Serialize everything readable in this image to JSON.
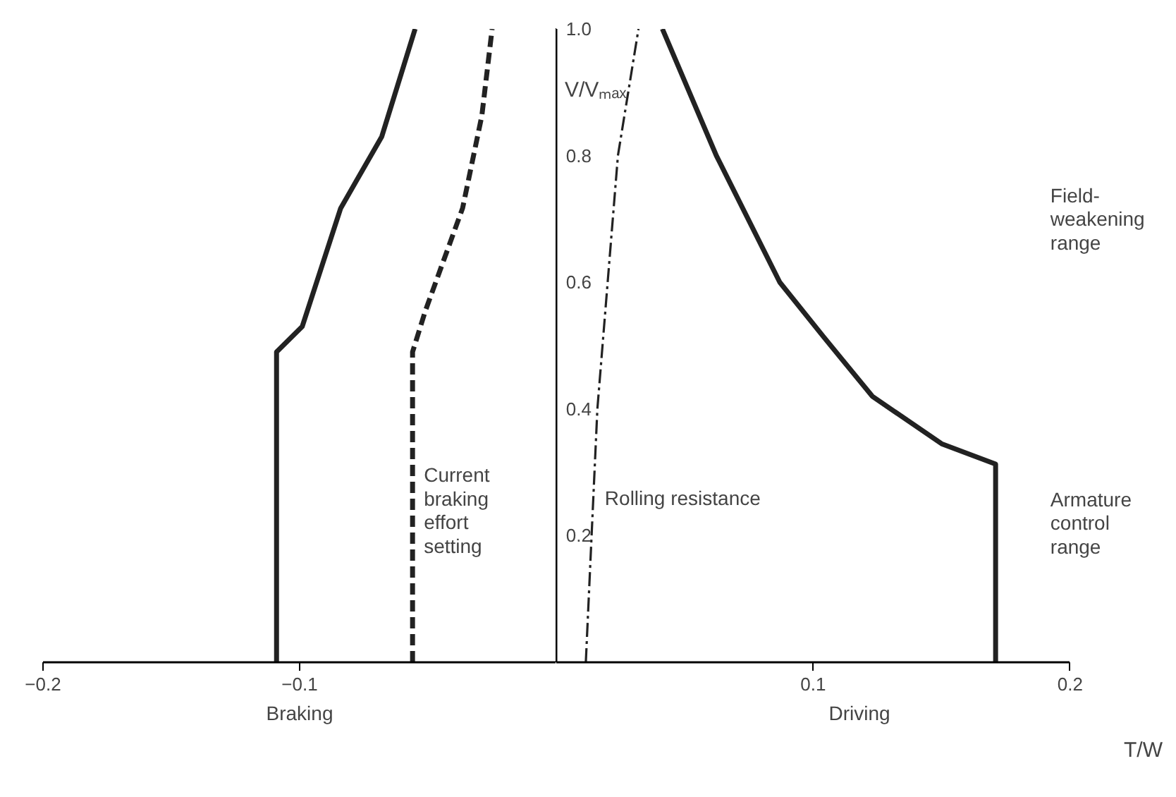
{
  "chart_data": {
    "type": "line",
    "xlabel": "T/W",
    "ylabel": "V/Vₘₐₓ",
    "xlim": [
      -0.2,
      0.2
    ],
    "xticks": [
      {
        "value": -0.2,
        "label": "−0.2"
      },
      {
        "value": -0.1,
        "label": "−0.1"
      },
      0.1,
      0.2
    ],
    "ylim": [
      0,
      1.0
    ],
    "yticks": [
      0.2,
      0.4,
      0.6,
      0.8,
      {
        "value": 1.0,
        "label": "1.0"
      }
    ],
    "grid": false,
    "series": [
      {
        "color": "#222222",
        "line_style": "solid",
        "x": [
          -0.109,
          -0.109,
          -0.099,
          -0.084,
          -0.068,
          -0.055
        ],
        "values": [
          0,
          0.49,
          0.53,
          0.717,
          0.83,
          1.0
        ]
      },
      {
        "color": "#222222",
        "line_style": "dashed",
        "x": [
          -0.056,
          -0.056,
          -0.051,
          -0.0365,
          -0.029,
          -0.025
        ],
        "values": [
          0,
          0.49,
          0.555,
          0.717,
          0.863,
          1.0
        ]
      },
      {
        "color": "#222222",
        "line_style": "dashdot",
        "x": [
          0.0115,
          0.016,
          0.024,
          0.032
        ],
        "values": [
          0,
          0.4,
          0.8,
          1.0
        ]
      },
      {
        "color": "#222222",
        "line_style": "solid",
        "x": [
          0.0413,
          0.0623,
          0.087,
          0.104,
          0.123,
          0.15,
          0.171,
          0.171
        ],
        "values": [
          1.0,
          0.8,
          0.6,
          0.514,
          0.42,
          0.345,
          0.313,
          0
        ]
      }
    ],
    "annotations": [
      "Braking",
      "Driving",
      {
        "text": "Current\nbraking\neffort\nsetting",
        "x": -0.056,
        "y": 0.24
      },
      {
        "text": "Rolling resistance",
        "x": 0.0145,
        "y": 0.26
      },
      "Field-\nweakening\nrange",
      "Armature\ncontrol\nrange"
    ]
  }
}
